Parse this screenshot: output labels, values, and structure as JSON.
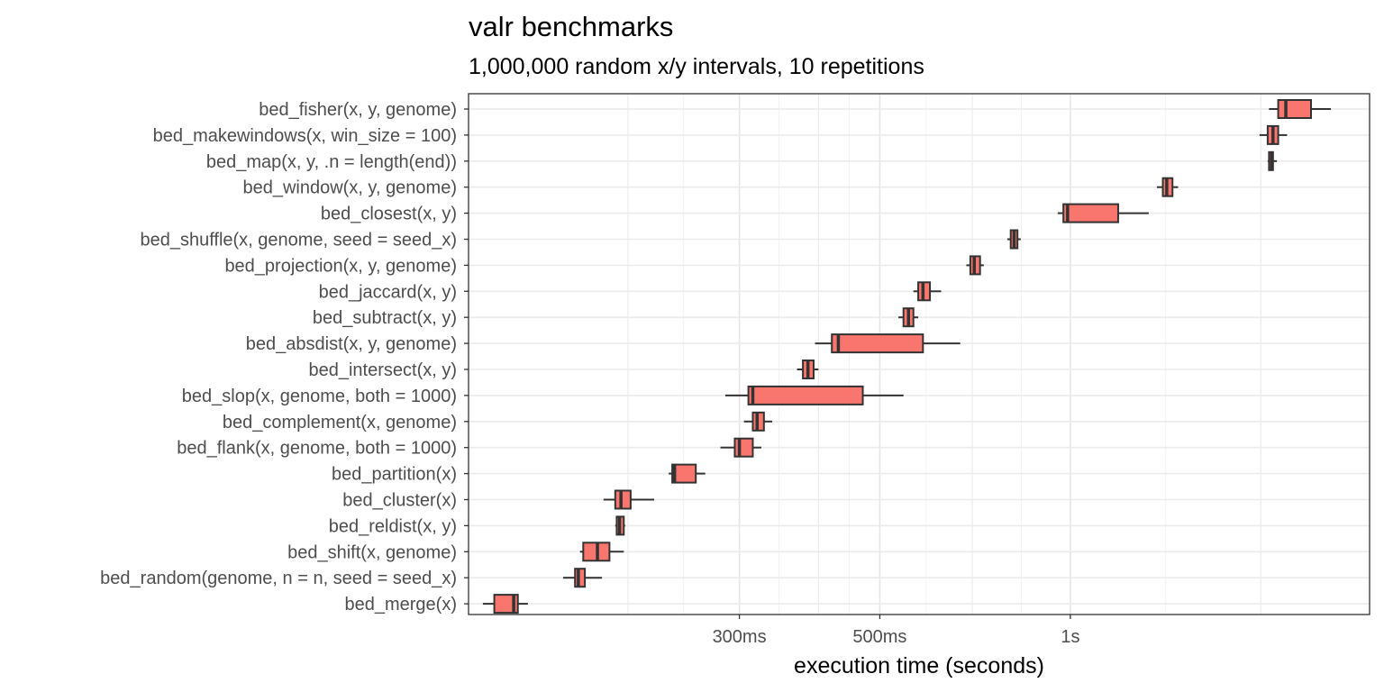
{
  "chart_data": {
    "type": "box",
    "orientation": "horizontal",
    "title": "valr benchmarks",
    "subtitle": "1,000,000 random x/y intervals, 10 repetitions",
    "xlabel": "execution time (seconds)",
    "ylabel": "",
    "x_scale": "log10",
    "xlim": [
      0.112,
      2.97
    ],
    "x_ticks": [
      {
        "value": 0.3,
        "label": "300ms"
      },
      {
        "value": 0.5,
        "label": "500ms"
      },
      {
        "value": 1.0,
        "label": "1s"
      }
    ],
    "x_grid": [
      0.2,
      0.3,
      0.4,
      0.5,
      0.7,
      1.0,
      2.0
    ],
    "grid": true,
    "box_color": "#f8766d",
    "categories": [
      "bed_fisher(x, y, genome)",
      "bed_makewindows(x, win_size = 100)",
      "bed_map(x, y, .n = length(end))",
      "bed_window(x, y, genome)",
      "bed_closest(x, y)",
      "bed_shuffle(x, genome, seed = seed_x)",
      "bed_projection(x, y, genome)",
      "bed_jaccard(x, y)",
      "bed_subtract(x, y)",
      "bed_absdist(x, y, genome)",
      "bed_intersect(x, y)",
      "bed_slop(x, genome, both = 1000)",
      "bed_complement(x, genome)",
      "bed_flank(x, genome, both = 1000)",
      "bed_partition(x)",
      "bed_cluster(x)",
      "bed_reldist(x, y)",
      "bed_shift(x, genome)",
      "bed_random(genome, n = n, seed = seed_x)",
      "bed_merge(x)"
    ],
    "boxes": [
      {
        "min": 2.06,
        "q1": 2.13,
        "median": 2.19,
        "q3": 2.4,
        "max": 2.58
      },
      {
        "min": 1.99,
        "q1": 2.05,
        "median": 2.09,
        "q3": 2.13,
        "max": 2.2
      },
      {
        "min": 2.05,
        "q1": 2.06,
        "median": 2.08,
        "q3": 2.09,
        "max": 2.12
      },
      {
        "min": 1.37,
        "q1": 1.4,
        "median": 1.42,
        "q3": 1.45,
        "max": 1.48
      },
      {
        "min": 0.955,
        "q1": 0.975,
        "median": 0.99,
        "q3": 1.19,
        "max": 1.33
      },
      {
        "min": 0.795,
        "q1": 0.805,
        "median": 0.815,
        "q3": 0.825,
        "max": 0.835
      },
      {
        "min": 0.685,
        "q1": 0.695,
        "median": 0.705,
        "q3": 0.72,
        "max": 0.73
      },
      {
        "min": 0.565,
        "q1": 0.575,
        "median": 0.585,
        "q3": 0.6,
        "max": 0.625
      },
      {
        "min": 0.535,
        "q1": 0.545,
        "median": 0.555,
        "q3": 0.565,
        "max": 0.575
      },
      {
        "min": 0.395,
        "q1": 0.42,
        "median": 0.43,
        "q3": 0.585,
        "max": 0.67
      },
      {
        "min": 0.37,
        "q1": 0.378,
        "median": 0.385,
        "q3": 0.393,
        "max": 0.4
      },
      {
        "min": 0.285,
        "q1": 0.31,
        "median": 0.315,
        "q3": 0.47,
        "max": 0.545
      },
      {
        "min": 0.305,
        "q1": 0.315,
        "median": 0.32,
        "q3": 0.328,
        "max": 0.338
      },
      {
        "min": 0.28,
        "q1": 0.295,
        "median": 0.3,
        "q3": 0.315,
        "max": 0.325
      },
      {
        "min": 0.232,
        "q1": 0.235,
        "median": 0.237,
        "q3": 0.256,
        "max": 0.265
      },
      {
        "min": 0.183,
        "q1": 0.191,
        "median": 0.195,
        "q3": 0.202,
        "max": 0.22
      },
      {
        "min": 0.191,
        "q1": 0.192,
        "median": 0.194,
        "q3": 0.197,
        "max": 0.198
      },
      {
        "min": 0.168,
        "q1": 0.17,
        "median": 0.179,
        "q3": 0.187,
        "max": 0.197
      },
      {
        "min": 0.158,
        "q1": 0.165,
        "median": 0.167,
        "q3": 0.171,
        "max": 0.182
      },
      {
        "min": 0.118,
        "q1": 0.123,
        "median": 0.132,
        "q3": 0.134,
        "max": 0.139
      }
    ]
  }
}
